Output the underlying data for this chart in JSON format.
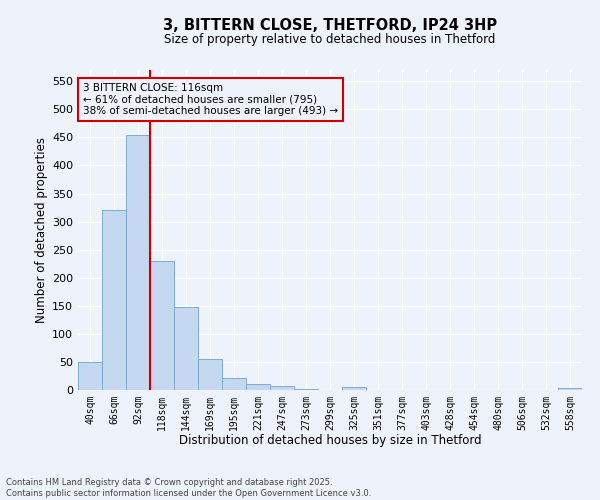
{
  "title_line1": "3, BITTERN CLOSE, THETFORD, IP24 3HP",
  "title_line2": "Size of property relative to detached houses in Thetford",
  "xlabel": "Distribution of detached houses by size in Thetford",
  "ylabel": "Number of detached properties",
  "categories": [
    "40sqm",
    "66sqm",
    "92sqm",
    "118sqm",
    "144sqm",
    "169sqm",
    "195sqm",
    "221sqm",
    "247sqm",
    "273sqm",
    "299sqm",
    "325sqm",
    "351sqm",
    "377sqm",
    "403sqm",
    "428sqm",
    "454sqm",
    "480sqm",
    "506sqm",
    "532sqm",
    "558sqm"
  ],
  "values": [
    50,
    320,
    455,
    230,
    148,
    55,
    22,
    10,
    8,
    1,
    0,
    5,
    0,
    0,
    0,
    0,
    0,
    0,
    0,
    0,
    3
  ],
  "bar_color": "#c5d8f0",
  "bar_edge_color": "#7aadd4",
  "vline_x_index": 3,
  "vline_color": "#cc0000",
  "annotation_text_line1": "3 BITTERN CLOSE: 116sqm",
  "annotation_text_line2": "← 61% of detached houses are smaller (795)",
  "annotation_text_line3": "38% of semi-detached houses are larger (493) →",
  "annotation_box_color": "#cc0000",
  "ylim": [
    0,
    570
  ],
  "yticks": [
    0,
    50,
    100,
    150,
    200,
    250,
    300,
    350,
    400,
    450,
    500,
    550
  ],
  "footer_line1": "Contains HM Land Registry data © Crown copyright and database right 2025.",
  "footer_line2": "Contains public sector information licensed under the Open Government Licence v3.0.",
  "background_color": "#eef2fa",
  "grid_color": "#ffffff"
}
